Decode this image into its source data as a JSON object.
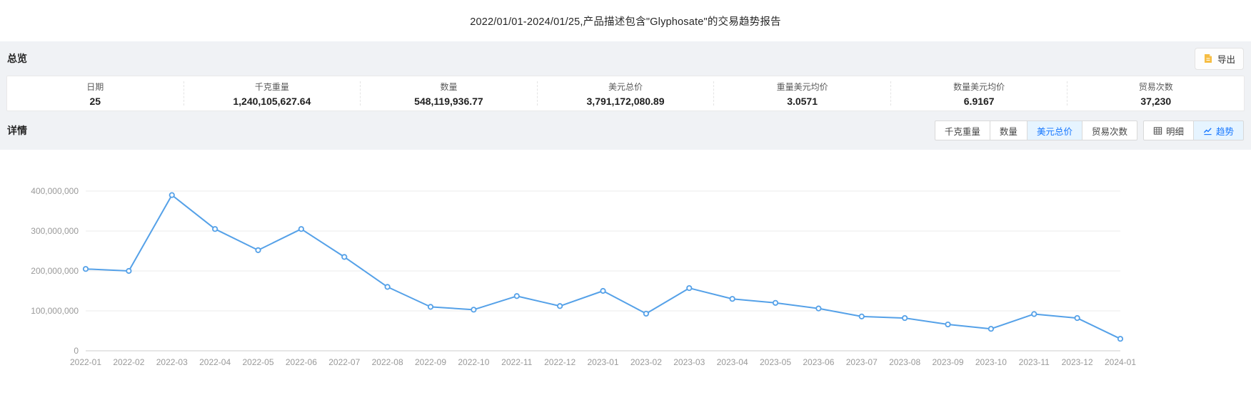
{
  "header": {
    "title": "2022/01/01-2024/01/25,产品描述包含\"Glyphosate\"的交易趋势报告"
  },
  "overview": {
    "section_title": "总览",
    "export_label": "导出",
    "export_icon": "export-file-icon",
    "stats": [
      {
        "label": "日期",
        "value": "25"
      },
      {
        "label": "千克重量",
        "value": "1,240,105,627.64"
      },
      {
        "label": "数量",
        "value": "548,119,936.77"
      },
      {
        "label": "美元总价",
        "value": "3,791,172,080.89"
      },
      {
        "label": "重量美元均价",
        "value": "3.0571"
      },
      {
        "label": "数量美元均价",
        "value": "6.9167"
      },
      {
        "label": "贸易次数",
        "value": "37,230"
      }
    ]
  },
  "details": {
    "section_title": "详情",
    "metric_tabs": [
      {
        "label": "千克重量",
        "active": false
      },
      {
        "label": "数量",
        "active": false
      },
      {
        "label": "美元总价",
        "active": true
      },
      {
        "label": "贸易次数",
        "active": false
      }
    ],
    "view_tabs": [
      {
        "label": "明细",
        "icon": "table-icon",
        "active": false
      },
      {
        "label": "趋势",
        "icon": "trend-icon",
        "active": true
      }
    ]
  },
  "accent": {
    "active_tab_bg": "#e6f4ff",
    "active_tab_text": "#1677ff",
    "export_icon_color": "#f6bd43"
  },
  "chart_data": {
    "type": "line",
    "title": "",
    "xlabel": "",
    "ylabel": "",
    "x": [
      "2022-01",
      "2022-02",
      "2022-03",
      "2022-04",
      "2022-05",
      "2022-06",
      "2022-07",
      "2022-08",
      "2022-09",
      "2022-10",
      "2022-11",
      "2022-12",
      "2023-01",
      "2023-02",
      "2023-03",
      "2023-04",
      "2023-05",
      "2023-06",
      "2023-07",
      "2023-08",
      "2023-09",
      "2023-10",
      "2023-11",
      "2023-12",
      "2024-01"
    ],
    "series": [
      {
        "name": "美元总价",
        "values": [
          205000000,
          200000000,
          390000000,
          305000000,
          252000000,
          305000000,
          235000000,
          160000000,
          110000000,
          103000000,
          137000000,
          112000000,
          150000000,
          93000000,
          157000000,
          130000000,
          120000000,
          106000000,
          86000000,
          82000000,
          66000000,
          55000000,
          92000000,
          82000000,
          30000000
        ]
      }
    ],
    "ylim": [
      0,
      400000000
    ],
    "yticks": [
      0,
      100000000,
      200000000,
      300000000,
      400000000
    ],
    "ytick_labels": [
      "0",
      "100,000,000",
      "200,000,000",
      "300,000,000",
      "400,000,000"
    ],
    "grid": true,
    "legend_position": "none",
    "line_color": "#55a1e8",
    "point_fill": "#ffffff",
    "grid_color": "#ebebeb",
    "axis_color": "#cccccc"
  }
}
